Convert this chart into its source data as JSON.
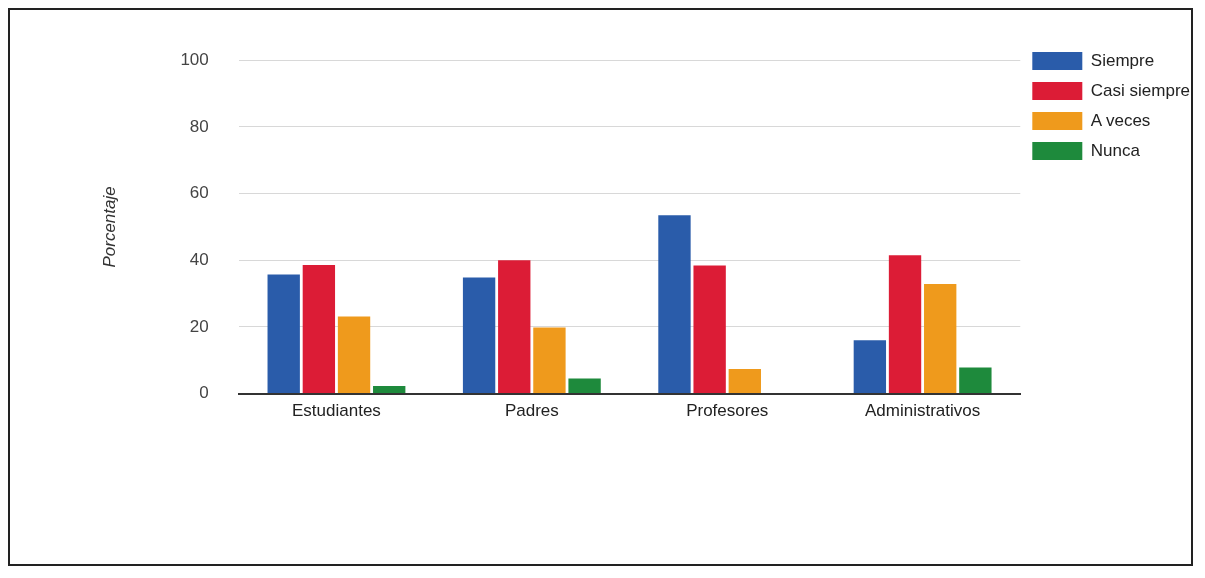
{
  "chart_data": {
    "type": "bar",
    "ylabel": "Porcentaje",
    "categories": [
      "Estudiantes",
      "Padres",
      "Profesores",
      "Administrativos"
    ],
    "series": [
      {
        "name": "Siempre",
        "color": "#2a5caa",
        "values": [
          35.7,
          34.8,
          53.5,
          16
        ]
      },
      {
        "name": "Casi siempre",
        "color": "#dc1c36",
        "values": [
          38.6,
          40,
          38.4,
          41.5
        ]
      },
      {
        "name": "A veces",
        "color": "#ef9a1c",
        "values": [
          23.1,
          19.8,
          7.4,
          32.9
        ]
      },
      {
        "name": "Nunca",
        "color": "#1e8a3c",
        "values": [
          2.3,
          4.5,
          0,
          7.8
        ]
      }
    ],
    "ylim": [
      0,
      100
    ],
    "yticks": [
      0,
      20,
      40,
      60,
      80,
      100
    ],
    "grid": "y",
    "legend": "top right"
  }
}
